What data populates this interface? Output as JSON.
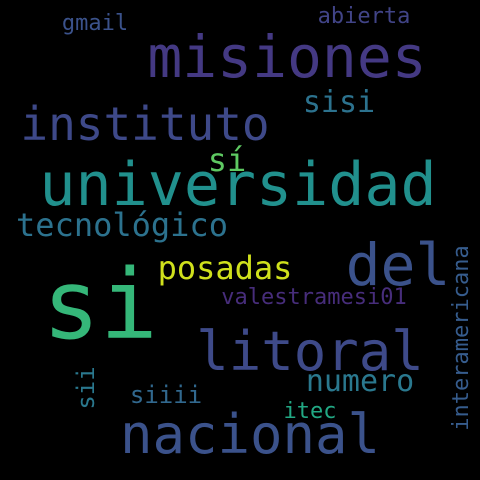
{
  "words": {
    "universidad": {
      "text": "universidad",
      "color": "#21908d"
    },
    "si": {
      "text": "si",
      "color": "#35b779"
    },
    "misiones": {
      "text": "misiones",
      "color": "#443983"
    },
    "nacional": {
      "text": "nacional",
      "color": "#3b528b"
    },
    "litoral": {
      "text": "litoral",
      "color": "#3e4a89"
    },
    "del": {
      "text": "del",
      "color": "#3b528b"
    },
    "instituto": {
      "text": "instituto",
      "color": "#3e4989"
    },
    "tecnologico": {
      "text": "tecnológico",
      "color": "#2c728e"
    },
    "posadas": {
      "text": "posadas",
      "color": "#d0e11c"
    },
    "numero": {
      "text": "numero",
      "color": "#2a788e"
    },
    "interamericana": {
      "text": "interamericana",
      "color": "#365c8d"
    },
    "valestramesi01": {
      "text": "valestramesi01",
      "color": "#472d7b"
    },
    "sisi": {
      "text": "sisi",
      "color": "#2c728e"
    },
    "si_acc": {
      "text": "sí",
      "color": "#5ec962"
    },
    "abierta": {
      "text": "abierta",
      "color": "#414487"
    },
    "gmail": {
      "text": "gmail",
      "color": "#3b528b"
    },
    "siiii": {
      "text": "siiii",
      "color": "#31688e"
    },
    "sii": {
      "text": "sii",
      "color": "#2a788e"
    },
    "itec": {
      "text": "itec",
      "color": "#22a884"
    }
  }
}
